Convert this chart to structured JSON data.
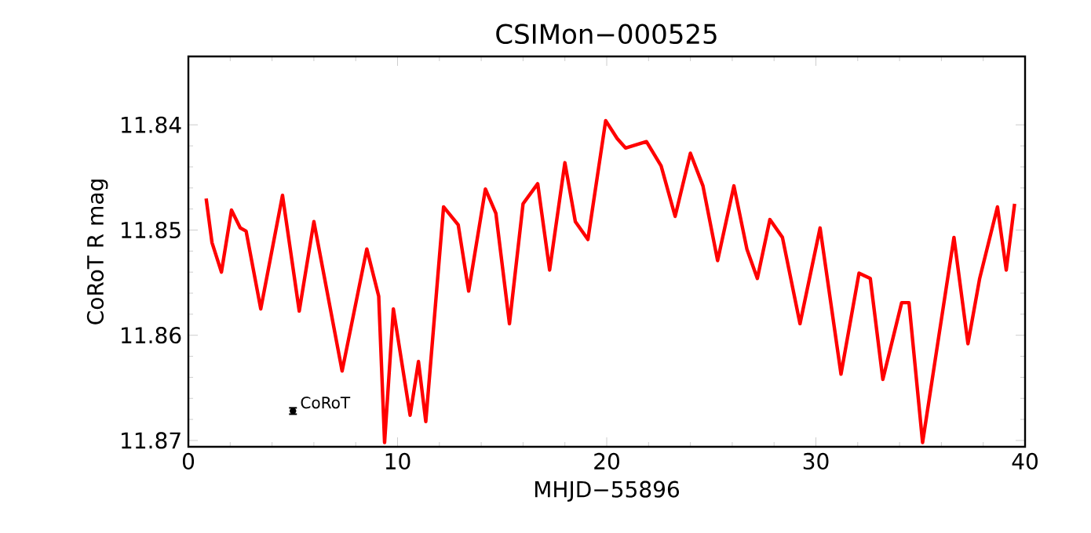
{
  "chart_data": {
    "type": "line",
    "title": "CSIMon−000525",
    "xlabel": "MHJD−55896",
    "ylabel": "CoRoT R mag",
    "xlim": [
      0,
      40
    ],
    "xticks": [
      0,
      10,
      20,
      30,
      40
    ],
    "ylim": [
      11.8706,
      11.8335
    ],
    "yticks": [
      11.84,
      11.85,
      11.86,
      11.87
    ],
    "series": [
      {
        "color": "#ff0000",
        "x": [
          0.85,
          1.13,
          1.58,
          2.06,
          2.48,
          2.76,
          3.46,
          4.5,
          5.3,
          6.0,
          7.35,
          8.53,
          9.1,
          9.38,
          9.8,
          10.6,
          11.0,
          11.35,
          12.2,
          12.9,
          13.4,
          14.2,
          14.7,
          15.35,
          16.0,
          16.7,
          17.27,
          18.0,
          18.5,
          19.1,
          19.95,
          20.5,
          20.9,
          21.9,
          22.6,
          23.27,
          24.0,
          24.6,
          25.3,
          26.08,
          26.7,
          27.2,
          27.8,
          28.4,
          29.24,
          30.2,
          31.2,
          32.06,
          32.6,
          33.2,
          34.1,
          34.45,
          35.1,
          35.86,
          36.6,
          37.27,
          37.83,
          38.68,
          39.1,
          39.5
        ],
        "values": [
          11.847,
          11.8512,
          11.854,
          11.8481,
          11.8498,
          11.8501,
          11.8575,
          11.8467,
          11.8577,
          11.8492,
          11.8634,
          11.8518,
          11.8563,
          11.8702,
          11.8575,
          11.8676,
          11.8625,
          11.8682,
          11.8478,
          11.8495,
          11.8558,
          11.8461,
          11.8484,
          11.8589,
          11.8475,
          11.8456,
          11.8538,
          11.8436,
          11.8492,
          11.8509,
          11.8396,
          11.8413,
          11.8422,
          11.8416,
          11.8439,
          11.8487,
          11.8427,
          11.8458,
          11.8529,
          11.8458,
          11.8518,
          11.8546,
          11.849,
          11.8507,
          11.8589,
          11.8498,
          11.8637,
          11.8541,
          11.8546,
          11.8642,
          11.8569,
          11.8569,
          11.8702,
          11.8603,
          11.8507,
          11.8608,
          11.8546,
          11.8478,
          11.8538,
          11.8475
        ]
      },
      {
        "type": "scatter",
        "color": "#000000",
        "x": [
          5.0
        ],
        "values": [
          11.8672
        ],
        "errors": [
          0.0003
        ]
      }
    ],
    "annotations": [
      {
        "text": "CoRoT",
        "x": 5.0,
        "y": 11.8672
      }
    ]
  }
}
